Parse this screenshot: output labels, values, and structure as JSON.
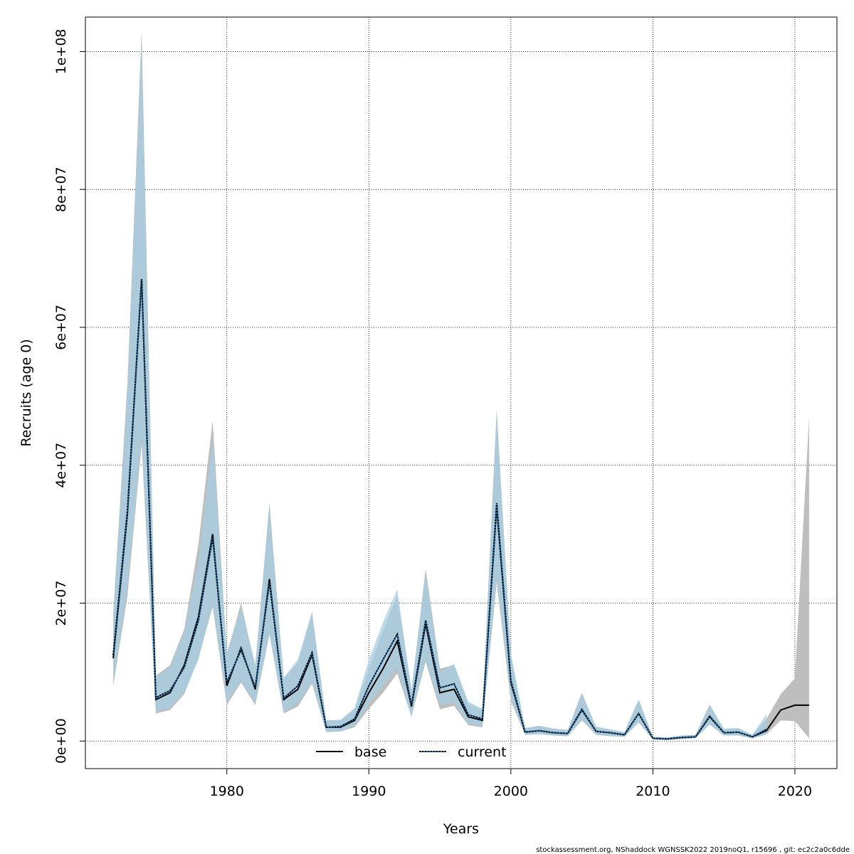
{
  "chart_data": {
    "type": "line",
    "xlabel": "Years",
    "ylabel": "Recruits (age 0)",
    "xlim": [
      1972,
      2021
    ],
    "ylim": [
      -4000000,
      105000000
    ],
    "x_ticks": [
      1980,
      1990,
      2000,
      2010,
      2020
    ],
    "x_tick_labels": [
      "1980",
      "1990",
      "2000",
      "2010",
      "2020"
    ],
    "y_ticks": [
      0,
      20000000,
      40000000,
      60000000,
      80000000,
      100000000
    ],
    "y_tick_labels": [
      "0e+00",
      "2e+07",
      "4e+07",
      "6e+07",
      "8e+07",
      "1e+08"
    ],
    "grid": true,
    "legend_position": "bottom",
    "colors": {
      "base_band": "#bebebe",
      "current_band": "#a6cee3",
      "base_line": "#000000",
      "current_line": "#1f78b4"
    },
    "series": [
      {
        "name": "base",
        "style": "solid",
        "x": [
          1972,
          1973,
          1974,
          1975,
          1976,
          1977,
          1978,
          1979,
          1980,
          1981,
          1982,
          1983,
          1984,
          1985,
          1986,
          1987,
          1988,
          1989,
          1990,
          1991,
          1992,
          1993,
          1994,
          1995,
          1996,
          1997,
          1998,
          1999,
          2000,
          2001,
          2002,
          2003,
          2004,
          2005,
          2006,
          2007,
          2008,
          2009,
          2010,
          2011,
          2012,
          2013,
          2014,
          2015,
          2016,
          2017,
          2018,
          2019,
          2020,
          2021
        ],
        "y": [
          12000000,
          33000000,
          67000000,
          6000000,
          7000000,
          11000000,
          18000000,
          30000000,
          8000000,
          13500000,
          7500000,
          23500000,
          6000000,
          7500000,
          12500000,
          2000000,
          2000000,
          3000000,
          7000000,
          10500000,
          14500000,
          5000000,
          17000000,
          7000000,
          7500000,
          3500000,
          3000000,
          34000000,
          8500000,
          1300000,
          1500000,
          1200000,
          1100000,
          4500000,
          1400000,
          1200000,
          900000,
          4000000,
          400000,
          300000,
          500000,
          600000,
          3600000,
          1200000,
          1300000,
          600000,
          1500000,
          4500000,
          5200000,
          5200000
        ],
        "lower": [
          8000000,
          21000000,
          43000000,
          4000000,
          4500000,
          6800000,
          12000000,
          19500000,
          5200000,
          8500000,
          5200000,
          15500000,
          4000000,
          5000000,
          8300000,
          1300000,
          1400000,
          2000000,
          4700000,
          7000000,
          9800000,
          3500000,
          11500000,
          4600000,
          5100000,
          2300000,
          2000000,
          23000000,
          5800000,
          900000,
          1000000,
          800000,
          700000,
          3000000,
          900000,
          700000,
          600000,
          2700000,
          200000,
          150000,
          300000,
          400000,
          2400000,
          800000,
          800000,
          400000,
          1000000,
          3000000,
          2900000,
          400000
        ],
        "upper": [
          18500000,
          52000000,
          103000000,
          9500000,
          11000000,
          16200000,
          28500000,
          46500000,
          12500000,
          20000000,
          10700000,
          34500000,
          9000000,
          11400000,
          18500000,
          3000000,
          3000000,
          4600000,
          10400000,
          16000000,
          21000000,
          7200000,
          25000000,
          10500000,
          11000000,
          5400000,
          4500000,
          48000000,
          12500000,
          1800000,
          2200000,
          1800000,
          1600000,
          7000000,
          2000000,
          1600000,
          1300000,
          6000000,
          600000,
          500000,
          800000,
          900000,
          5300000,
          1700000,
          1800000,
          900000,
          3200000,
          6800000,
          9100000,
          47000000
        ]
      },
      {
        "name": "current",
        "style": "dotted",
        "x": [
          1972,
          1973,
          1974,
          1975,
          1976,
          1977,
          1978,
          1979,
          1980,
          1981,
          1982,
          1983,
          1984,
          1985,
          1986,
          1987,
          1988,
          1989,
          1990,
          1991,
          1992,
          1993,
          1994,
          1995,
          1996,
          1997,
          1998,
          1999,
          2000,
          2001,
          2002,
          2003,
          2004,
          2005,
          2006,
          2007,
          2008,
          2009,
          2010,
          2011,
          2012,
          2013,
          2014,
          2015,
          2016,
          2017,
          2018
        ],
        "y": [
          12500000,
          33500000,
          67000000,
          6300000,
          7300000,
          10700000,
          17500000,
          29500000,
          8500000,
          13200000,
          7800000,
          23000000,
          6200000,
          8000000,
          12800000,
          2000000,
          2100000,
          3200000,
          8000000,
          11800000,
          15500000,
          5200000,
          17500000,
          7700000,
          8300000,
          3800000,
          3200000,
          34500000,
          8800000,
          1300000,
          1500000,
          1200000,
          1100000,
          4600000,
          1400000,
          1200000,
          900000,
          4000000,
          400000,
          300000,
          500000,
          600000,
          3500000,
          1200000,
          1300000,
          600000,
          1700000
        ],
        "lower": [
          8500000,
          22000000,
          44000000,
          4200000,
          4800000,
          7000000,
          11800000,
          19800000,
          5600000,
          8700000,
          5400000,
          15500000,
          4200000,
          5400000,
          8600000,
          1300000,
          1400000,
          2200000,
          5400000,
          8000000,
          10500000,
          3500000,
          11800000,
          5200000,
          5600000,
          2500000,
          2100000,
          23500000,
          6000000,
          900000,
          1000000,
          800000,
          700000,
          3100000,
          900000,
          700000,
          600000,
          2700000,
          200000,
          150000,
          300000,
          400000,
          2400000,
          800000,
          800000,
          400000,
          900000
        ],
        "upper": [
          18000000,
          51000000,
          101000000,
          9300000,
          10700000,
          15800000,
          26000000,
          44000000,
          12900000,
          19300000,
          11200000,
          33800000,
          9200000,
          11800000,
          18800000,
          3000000,
          3100000,
          4800000,
          11800000,
          17200000,
          22000000,
          7500000,
          24500000,
          10000000,
          11200000,
          5700000,
          4700000,
          48000000,
          12800000,
          1900000,
          2200000,
          1800000,
          1600000,
          6800000,
          2100000,
          1700000,
          1300000,
          6000000,
          600000,
          500000,
          800000,
          900000,
          5200000,
          1800000,
          1900000,
          900000,
          3900000
        ]
      }
    ]
  },
  "legend": {
    "items": [
      {
        "label": "base"
      },
      {
        "label": "current"
      }
    ]
  },
  "footer": {
    "text": "stockassessment.org, NShaddock  WGNSSK2022  2019noQ1, r15696 , git: ec2c2a0c6dde"
  }
}
